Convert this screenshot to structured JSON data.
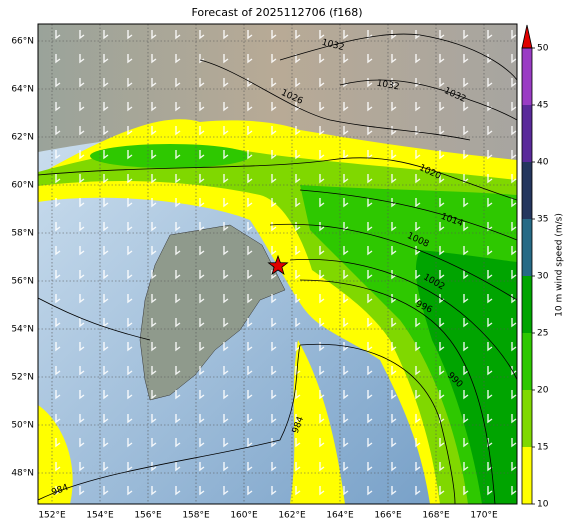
{
  "title": "Forecast of 2025112706 (f168)",
  "latitude_labels": [
    "66°N",
    "64°N",
    "62°N",
    "60°N",
    "58°N",
    "56°N",
    "54°N",
    "52°N",
    "50°N",
    "48°N"
  ],
  "longitude_labels": [
    "152°E",
    "154°E",
    "156°E",
    "158°E",
    "160°E",
    "162°E",
    "164°E",
    "166°E",
    "168°E",
    "170°E"
  ],
  "colorbar": {
    "label": "10 m wind speed (m/s)",
    "ticks": [
      10,
      15,
      20,
      25,
      30,
      35,
      40,
      45,
      50
    ],
    "colors": [
      "#ffff00",
      "#80d800",
      "#2ec800",
      "#00a400",
      "#266a86",
      "#24365e",
      "#5a2a9a",
      "#9a3cc4"
    ],
    "extend_color": "#e00000"
  },
  "isobar_labels": [
    "1032",
    "1032",
    "1032",
    "1026",
    "1020",
    "1014",
    "1008",
    "1002",
    "996",
    "990",
    "984",
    "984"
  ]
}
